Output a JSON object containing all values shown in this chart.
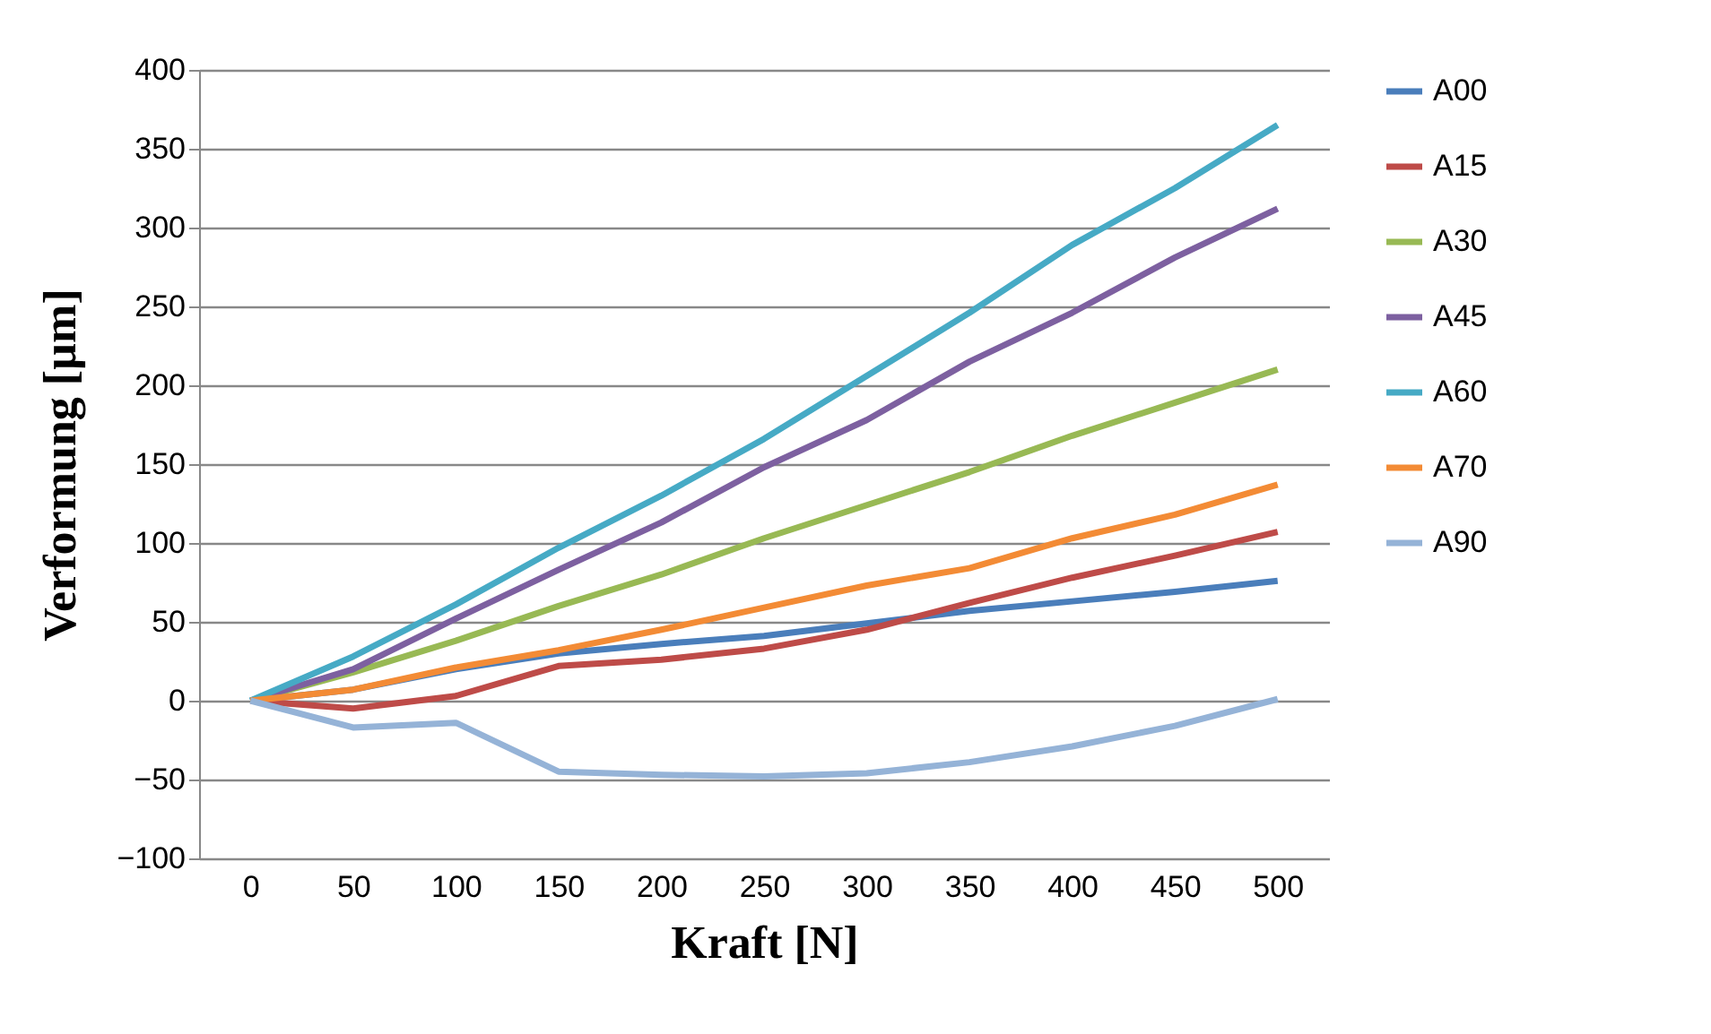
{
  "chart_data": {
    "type": "line",
    "xlabel": "Kraft [N]",
    "ylabel": "Verformung [µm]",
    "categories": [
      "0",
      "50",
      "100",
      "150",
      "200",
      "250",
      "300",
      "350",
      "400",
      "450",
      "500"
    ],
    "ylim": [
      -100,
      400
    ],
    "yticks": [
      -100,
      -50,
      0,
      50,
      100,
      150,
      200,
      250,
      300,
      350,
      400
    ],
    "grid": "y",
    "legend": "right",
    "marker": "none",
    "line_style": "solid",
    "series": [
      {
        "name": "A00",
        "color": "#4a7ebb",
        "values": [
          0,
          7,
          20,
          30,
          36,
          41,
          49,
          57,
          63,
          69,
          76
        ]
      },
      {
        "name": "A15",
        "color": "#be4b48",
        "values": [
          0,
          -5,
          3,
          22,
          26,
          33,
          45,
          62,
          78,
          92,
          107
        ]
      },
      {
        "name": "A30",
        "color": "#98b954",
        "values": [
          0,
          18,
          38,
          60,
          80,
          103,
          124,
          145,
          168,
          189,
          210
        ]
      },
      {
        "name": "A45",
        "color": "#7d60a0",
        "values": [
          0,
          20,
          52,
          83,
          113,
          148,
          178,
          215,
          246,
          281,
          312
        ]
      },
      {
        "name": "A60",
        "color": "#46aac5",
        "values": [
          0,
          28,
          61,
          97,
          130,
          166,
          206,
          246,
          289,
          325,
          365
        ]
      },
      {
        "name": "A70",
        "color": "#f38b35",
        "values": [
          0,
          7,
          21,
          32,
          45,
          59,
          73,
          84,
          103,
          118,
          137
        ]
      },
      {
        "name": "A90",
        "color": "#95b3d7",
        "values": [
          0,
          -17,
          -14,
          -45,
          -47,
          -48,
          -46,
          -39,
          -29,
          -16,
          1
        ]
      }
    ]
  }
}
